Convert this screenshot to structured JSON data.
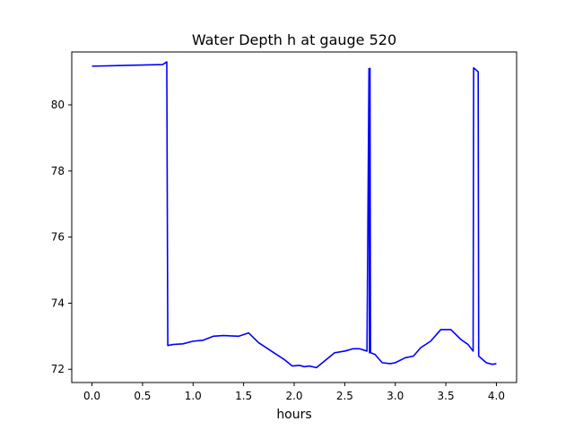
{
  "chart_data": {
    "type": "line",
    "title": "Water Depth h at gauge 520",
    "xlabel": "hours",
    "ylabel": "",
    "xlim": [
      -0.2,
      4.2
    ],
    "ylim": [
      71.6,
      81.6
    ],
    "xticks": [
      0.0,
      0.5,
      1.0,
      1.5,
      2.0,
      2.5,
      3.0,
      3.5,
      4.0
    ],
    "xtick_labels": [
      "0.0",
      "0.5",
      "1.0",
      "1.5",
      "2.0",
      "2.5",
      "3.0",
      "3.5",
      "4.0"
    ],
    "yticks": [
      72,
      74,
      76,
      78,
      80
    ],
    "ytick_labels": [
      "72",
      "74",
      "76",
      "78",
      "80"
    ],
    "grid": false,
    "legend": "none",
    "series": [
      {
        "color": "#0000ff",
        "points": [
          [
            0.0,
            81.17
          ],
          [
            0.7,
            81.22
          ],
          [
            0.74,
            81.3
          ],
          [
            0.75,
            72.72
          ],
          [
            0.8,
            72.75
          ],
          [
            0.9,
            72.77
          ],
          [
            1.0,
            72.85
          ],
          [
            1.1,
            72.88
          ],
          [
            1.2,
            73.0
          ],
          [
            1.3,
            73.02
          ],
          [
            1.45,
            73.0
          ],
          [
            1.55,
            73.1
          ],
          [
            1.65,
            72.8
          ],
          [
            1.8,
            72.5
          ],
          [
            1.9,
            72.3
          ],
          [
            1.98,
            72.1
          ],
          [
            2.05,
            72.12
          ],
          [
            2.1,
            72.08
          ],
          [
            2.15,
            72.1
          ],
          [
            2.22,
            72.05
          ],
          [
            2.3,
            72.25
          ],
          [
            2.4,
            72.5
          ],
          [
            2.5,
            72.55
          ],
          [
            2.58,
            72.62
          ],
          [
            2.65,
            72.62
          ],
          [
            2.72,
            72.55
          ],
          [
            2.74,
            81.1
          ],
          [
            2.745,
            72.5
          ],
          [
            2.75,
            81.1
          ],
          [
            2.755,
            72.5
          ],
          [
            2.8,
            72.45
          ],
          [
            2.87,
            72.2
          ],
          [
            2.95,
            72.17
          ],
          [
            3.0,
            72.2
          ],
          [
            3.1,
            72.35
          ],
          [
            3.18,
            72.4
          ],
          [
            3.25,
            72.65
          ],
          [
            3.35,
            72.85
          ],
          [
            3.45,
            73.2
          ],
          [
            3.55,
            73.2
          ],
          [
            3.65,
            72.9
          ],
          [
            3.72,
            72.75
          ],
          [
            3.77,
            72.55
          ],
          [
            3.775,
            81.12
          ],
          [
            3.82,
            81.0
          ],
          [
            3.825,
            72.4
          ],
          [
            3.9,
            72.2
          ],
          [
            3.96,
            72.15
          ],
          [
            4.0,
            72.17
          ]
        ]
      }
    ]
  }
}
